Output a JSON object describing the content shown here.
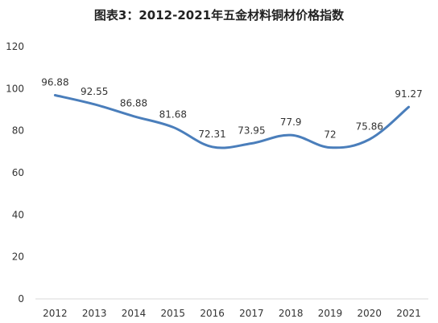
{
  "chart_data": {
    "type": "line",
    "title": "图表3：2012-2021年五金材料铜材价格指数",
    "xlabel": "",
    "ylabel": "",
    "categories": [
      "2012",
      "2013",
      "2014",
      "2015",
      "2016",
      "2017",
      "2018",
      "2019",
      "2020",
      "2021"
    ],
    "series": [
      {
        "values": [
          96.88,
          92.55,
          86.88,
          81.68,
          72.31,
          73.95,
          77.9,
          72,
          75.86,
          91.27
        ],
        "value_labels": [
          "96.88",
          "92.55",
          "86.88",
          "81.68",
          "72.31",
          "73.95",
          "77.9",
          "72",
          "75.86",
          "91.27"
        ]
      }
    ],
    "ylim": [
      0,
      120
    ],
    "yticks": [
      "0",
      "20",
      "40",
      "60",
      "80",
      "100",
      "120"
    ],
    "grid": false,
    "legend": "none",
    "colors": {
      "line": "#4a7ebb",
      "axis": "#d9d9d9",
      "text": "#333333"
    }
  }
}
